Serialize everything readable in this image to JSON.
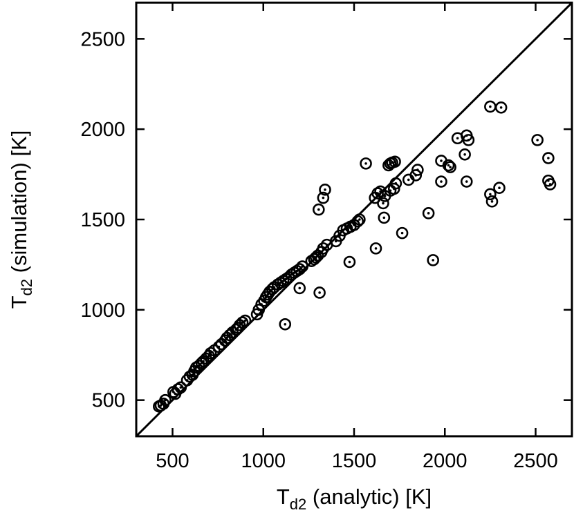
{
  "chart_data": {
    "type": "scatter",
    "xlabel": {
      "base": "T",
      "sub": "d2",
      "rest": " (analytic) [K]"
    },
    "ylabel": {
      "base": "T",
      "sub": "d2",
      "rest": " (simulation) [K]"
    },
    "xlim": [
      300,
      2700
    ],
    "ylim": [
      300,
      2700
    ],
    "x_ticks": [
      500,
      1000,
      1500,
      2000,
      2500
    ],
    "y_ticks": [
      500,
      1000,
      1500,
      2000,
      2500
    ],
    "reference_line": {
      "from": [
        300,
        300
      ],
      "to": [
        2700,
        2700
      ]
    },
    "grid": false,
    "marker": "circle-with-dot",
    "points": [
      [
        425,
        465
      ],
      [
        435,
        470
      ],
      [
        450,
        480
      ],
      [
        460,
        500
      ],
      [
        505,
        545
      ],
      [
        515,
        535
      ],
      [
        530,
        560
      ],
      [
        545,
        570
      ],
      [
        580,
        610
      ],
      [
        595,
        630
      ],
      [
        610,
        640
      ],
      [
        620,
        660
      ],
      [
        630,
        680
      ],
      [
        645,
        690
      ],
      [
        660,
        705
      ],
      [
        670,
        715
      ],
      [
        685,
        730
      ],
      [
        700,
        745
      ],
      [
        710,
        760
      ],
      [
        730,
        775
      ],
      [
        755,
        795
      ],
      [
        770,
        810
      ],
      [
        790,
        830
      ],
      [
        800,
        845
      ],
      [
        815,
        860
      ],
      [
        830,
        875
      ],
      [
        850,
        890
      ],
      [
        860,
        900
      ],
      [
        870,
        915
      ],
      [
        885,
        930
      ],
      [
        900,
        940
      ],
      [
        965,
        975
      ],
      [
        975,
        1000
      ],
      [
        990,
        1030
      ],
      [
        1005,
        1050
      ],
      [
        1015,
        1070
      ],
      [
        1025,
        1085
      ],
      [
        1035,
        1100
      ],
      [
        1050,
        1115
      ],
      [
        1060,
        1125
      ],
      [
        1080,
        1140
      ],
      [
        1095,
        1150
      ],
      [
        1110,
        1160
      ],
      [
        1125,
        1170
      ],
      [
        1140,
        1180
      ],
      [
        1155,
        1195
      ],
      [
        1170,
        1205
      ],
      [
        1185,
        1215
      ],
      [
        1200,
        1225
      ],
      [
        1215,
        1240
      ],
      [
        1265,
        1270
      ],
      [
        1280,
        1280
      ],
      [
        1290,
        1290
      ],
      [
        1300,
        1300
      ],
      [
        1320,
        1320
      ],
      [
        1330,
        1340
      ],
      [
        1350,
        1360
      ],
      [
        1400,
        1380
      ],
      [
        1420,
        1410
      ],
      [
        1440,
        1440
      ],
      [
        1460,
        1450
      ],
      [
        1480,
        1460
      ],
      [
        1500,
        1470
      ],
      [
        1520,
        1490
      ],
      [
        1530,
        1500
      ],
      [
        1340,
        1665
      ],
      [
        1330,
        1620
      ],
      [
        1305,
        1555
      ],
      [
        1565,
        1810
      ],
      [
        1615,
        1620
      ],
      [
        1630,
        1645
      ],
      [
        1645,
        1655
      ],
      [
        1660,
        1590
      ],
      [
        1670,
        1630
      ],
      [
        1690,
        1800
      ],
      [
        1700,
        1810
      ],
      [
        1710,
        1815
      ],
      [
        1725,
        1820
      ],
      [
        1700,
        1660
      ],
      [
        1720,
        1670
      ],
      [
        1730,
        1700
      ],
      [
        1800,
        1720
      ],
      [
        1840,
        1745
      ],
      [
        1850,
        1775
      ],
      [
        1980,
        1825
      ],
      [
        2020,
        1800
      ],
      [
        2030,
        1790
      ],
      [
        2070,
        1950
      ],
      [
        2110,
        1860
      ],
      [
        2120,
        1965
      ],
      [
        2130,
        1940
      ],
      [
        2250,
        2125
      ],
      [
        2310,
        2120
      ],
      [
        2250,
        1640
      ],
      [
        2300,
        1675
      ],
      [
        2260,
        1600
      ],
      [
        2510,
        1940
      ],
      [
        2570,
        1840
      ],
      [
        2570,
        1715
      ],
      [
        2580,
        1695
      ],
      [
        1120,
        920
      ],
      [
        1310,
        1095
      ],
      [
        1200,
        1120
      ],
      [
        1475,
        1265
      ],
      [
        1620,
        1340
      ],
      [
        1765,
        1425
      ],
      [
        1910,
        1535
      ],
      [
        1935,
        1275
      ],
      [
        1980,
        1710
      ],
      [
        2120,
        1710
      ],
      [
        1665,
        1510
      ]
    ]
  }
}
